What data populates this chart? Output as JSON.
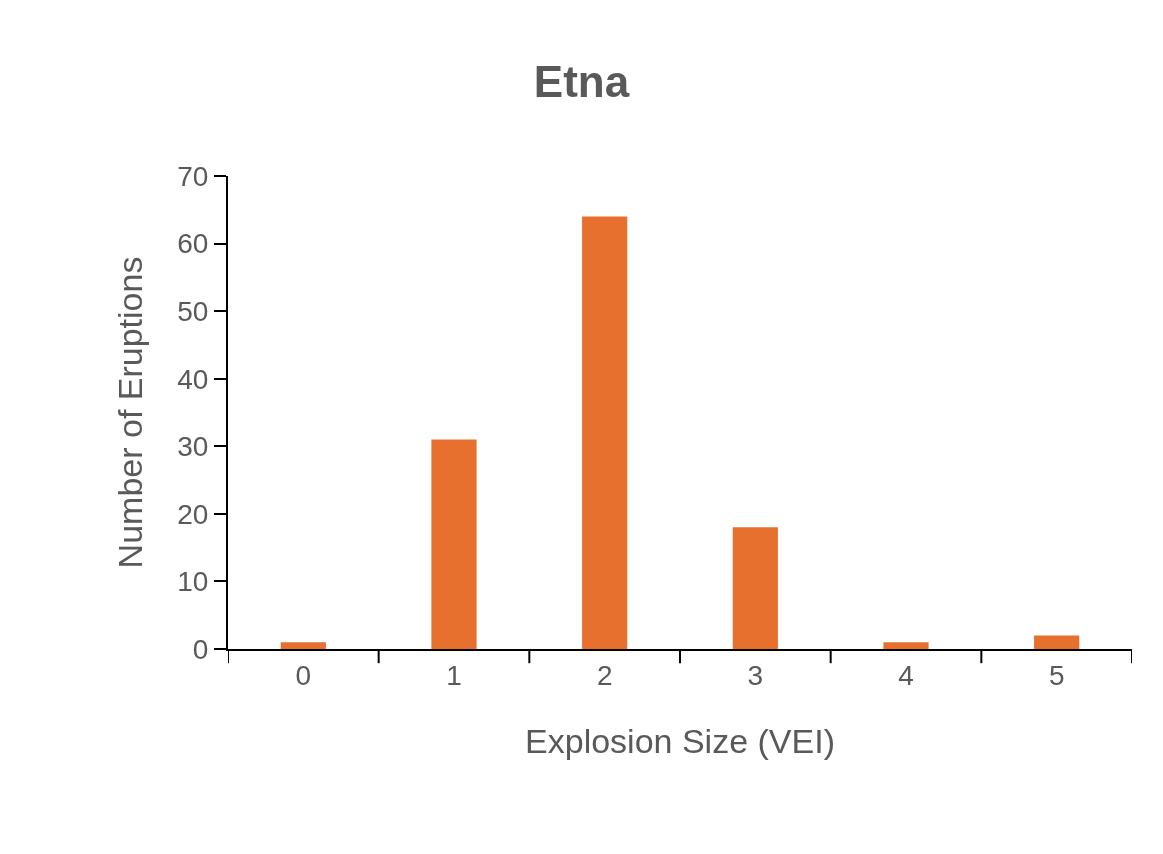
{
  "chart_data": {
    "type": "bar",
    "title": "Etna",
    "xlabel": "Explosion Size (VEI)",
    "ylabel": "Number of Eruptions",
    "categories": [
      "0",
      "1",
      "2",
      "3",
      "4",
      "5"
    ],
    "values": [
      1,
      31,
      64,
      18,
      1,
      2
    ],
    "color": "#e8702e",
    "ylim": [
      0,
      70
    ],
    "yticks": [
      0,
      10,
      20,
      30,
      40,
      50,
      60,
      70
    ],
    "grid": false
  }
}
